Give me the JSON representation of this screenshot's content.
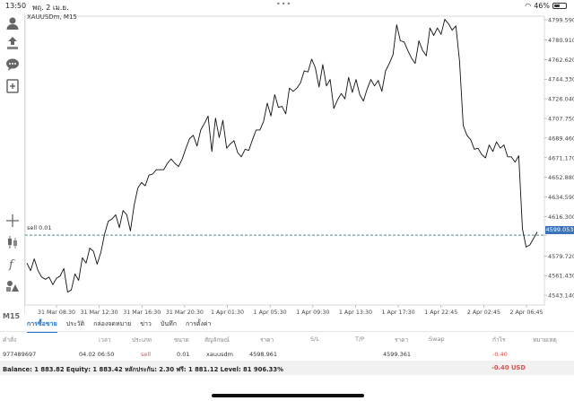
{
  "status": {
    "time": "13:50",
    "date": "พฤ. 2 เม.ย.",
    "battery": "46%",
    "battery_level": 0.46
  },
  "chart": {
    "symbol_label": "XAUUSDm, M15",
    "sell_line_label": "sell 0.01",
    "current_price_tag": "4599.053",
    "mode_label": "M15"
  },
  "chart_data": {
    "type": "line",
    "ylim": [
      4534,
      4803
    ],
    "y_ticks": [
      "4799.590",
      "4780.910",
      "4762.620",
      "4744.330",
      "4726.040",
      "4707.750",
      "4689.460",
      "4671.170",
      "4652.880",
      "4634.590",
      "4616.300",
      "4599.053",
      "4579.720",
      "4561.430",
      "4543.140"
    ],
    "x_ticks": [
      "31 Mar 08:30",
      "31 Mar 12:30",
      "31 Mar 16:30",
      "31 Mar 20:30",
      "1 Apr 01:30",
      "1 Apr 05:30",
      "1 Apr 09:30",
      "1 Apr 13:30",
      "1 Apr 17:30",
      "1 Apr 22:45",
      "2 Apr 02:45",
      "2 Apr 06:45"
    ],
    "sell_level": 4599.053,
    "values": [
      4573,
      4566,
      4577,
      4566,
      4560,
      4558,
      4560,
      4553,
      4559,
      4561,
      4568,
      4546,
      4548,
      4563,
      4557,
      4578,
      4573,
      4587,
      4584,
      4572,
      4583,
      4600,
      4612,
      4614,
      4618,
      4606,
      4622,
      4618,
      4603,
      4627,
      4643,
      4648,
      4645,
      4655,
      4656,
      4660,
      4660,
      4660,
      4666,
      4670,
      4666,
      4663,
      4670,
      4680,
      4689,
      4692,
      4682,
      4697,
      4703,
      4710,
      4677,
      4708,
      4690,
      4706,
      4680,
      4684,
      4687,
      4676,
      4672,
      4679,
      4678,
      4688,
      4697,
      4697,
      4705,
      4722,
      4710,
      4730,
      4718,
      4719,
      4712,
      4736,
      4733,
      4736,
      4741,
      4752,
      4751,
      4763,
      4755,
      4737,
      4758,
      4738,
      4744,
      4717,
      4725,
      4731,
      4726,
      4746,
      4732,
      4744,
      4730,
      4724,
      4735,
      4744,
      4738,
      4743,
      4733,
      4752,
      4759,
      4767,
      4795,
      4780,
      4779,
      4771,
      4764,
      4759,
      4780,
      4771,
      4766,
      4792,
      4785,
      4792,
      4786,
      4800,
      4796,
      4790,
      4794,
      4761,
      4701,
      4692,
      4688,
      4679,
      4680,
      4674,
      4671,
      4683,
      4677,
      4686,
      4680,
      4683,
      4672,
      4672,
      4667,
      4673,
      4605,
      4588,
      4590,
      4596,
      4602
    ]
  },
  "tabs": [
    "การซื้อขาย",
    "ประวัติ",
    "กล่องจดหมาย",
    "ข่าว",
    "บันทึก",
    "การตั้งค่า"
  ],
  "table": {
    "headers": [
      "คำสั่ง",
      "เวลา",
      "ประเภท",
      "ขนาด",
      "สัญลักษณ์",
      "ราคา",
      "S/L",
      "T/P",
      "ราคา",
      "Swap",
      "กำไร",
      "หมายเหตุ"
    ],
    "row": {
      "order": "977489697",
      "time": "04.02 06:50",
      "type": "sell",
      "size": "0.01",
      "symbol": "xauusdm",
      "price": "4598.961",
      "sl": "",
      "tp": "",
      "price2": "4599.361",
      "swap": "",
      "profit": "-0.40",
      "note": ""
    }
  },
  "balance": {
    "text": "Balance: 1 883.82 Equity: 1 883.42 หลักประกัน: 2.30 ฟรี: 1 881.12 Level: 81 906.33%",
    "pl": "-0.40  USD"
  },
  "colors": {
    "accent": "#1f6fc9",
    "price_tag": "#3b73b8",
    "loss": "#d9534f",
    "sell_line": "#4b8c8c"
  }
}
